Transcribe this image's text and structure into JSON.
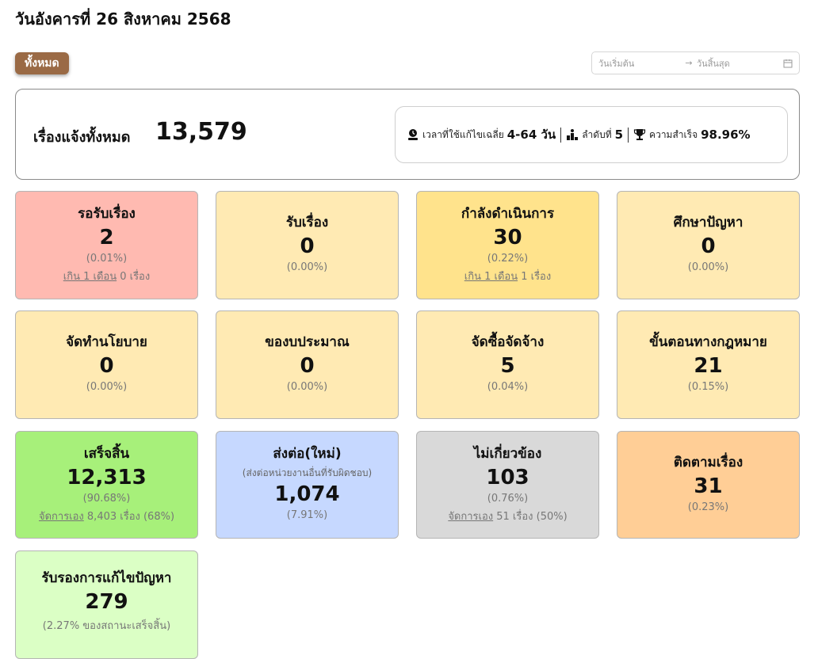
{
  "header": {
    "title": "วันอังคารที่ 26 สิงหาคม 2568"
  },
  "filter": {
    "all_label": "ทั้งหมด"
  },
  "date_range": {
    "start_placeholder": "วันเริ่มต้น",
    "arrow": "→",
    "end_placeholder": "วันสิ้นสุด",
    "icon": "calendar-icon"
  },
  "summary": {
    "total_label": "เรื่องแจ้งทั้งหมด",
    "total_value": "13,579",
    "stats": [
      {
        "icon": "user-clock-icon",
        "label": "เวลาที่ใช้แก้ไขเฉลี่ย",
        "value": "4-64 วัน"
      },
      {
        "icon": "ranking-icon",
        "label": "ลำดับที่",
        "value": "5"
      },
      {
        "icon": "trophy-icon",
        "label": "ความสำเร็จ",
        "value": "98.96%"
      }
    ]
  },
  "cards": {
    "pending": {
      "title": "รอรับเรื่อง",
      "value": "2",
      "percent": "(0.01%)",
      "foot_link": "เกิน 1 เดือน",
      "foot_rest": " 0 เรื่อง",
      "color": "#ffbab1"
    },
    "received": {
      "title": "รับเรื่อง",
      "value": "0",
      "percent": "(0.00%)",
      "color": "#ffeab3"
    },
    "in_progress": {
      "title": "กำลังดำเนินการ",
      "value": "30",
      "percent": "(0.22%)",
      "foot_link": "เกิน 1 เดือน",
      "foot_rest": " 1 เรื่อง",
      "color": "#ffe38c"
    },
    "studying": {
      "title": "ศึกษาปัญหา",
      "value": "0",
      "percent": "(0.00%)",
      "color": "#ffeab3"
    },
    "policy": {
      "title": "จัดทำนโยบาย",
      "value": "0",
      "percent": "(0.00%)",
      "color": "#ffeab3"
    },
    "budget": {
      "title": "ของบประมาณ",
      "value": "0",
      "percent": "(0.00%)",
      "color": "#ffeab3"
    },
    "procurement": {
      "title": "จัดซื้อจัดจ้าง",
      "value": "5",
      "percent": "(0.04%)",
      "color": "#ffeab3"
    },
    "legal": {
      "title": "ขั้นตอนทางกฎหมาย",
      "value": "21",
      "percent": "(0.15%)",
      "color": "#ffeab3"
    },
    "done": {
      "title": "เสร็จสิ้น",
      "value": "12,313",
      "percent": "(90.68%)",
      "foot_link": "จัดการเอง",
      "foot_rest": " 8,403 เรื่อง (68%)",
      "color": "#a7f07a"
    },
    "forwarded": {
      "title": "ส่งต่อ(ใหม่)",
      "subtitle": "(ส่งต่อหน่วยงานอื่นที่รับผิดชอบ)",
      "value": "1,074",
      "percent": "(7.91%)",
      "color": "#c6d8ff"
    },
    "irrelevant": {
      "title": "ไม่เกี่ยวข้อง",
      "value": "103",
      "percent": "(0.76%)",
      "foot_link": "จัดการเอง",
      "foot_rest": " 51 เรื่อง (50%)",
      "color": "#d9d9d9"
    },
    "follow_up": {
      "title": "ติดตามเรื่อง",
      "value": "31",
      "percent": "(0.23%)",
      "color": "#ffce96"
    },
    "certified": {
      "title": "รับรองการแก้ไขปัญหา",
      "value": "279",
      "percent": "(2.27% ของสถานะเสร็จสิ้น)",
      "color": "#dbffc5"
    }
  }
}
